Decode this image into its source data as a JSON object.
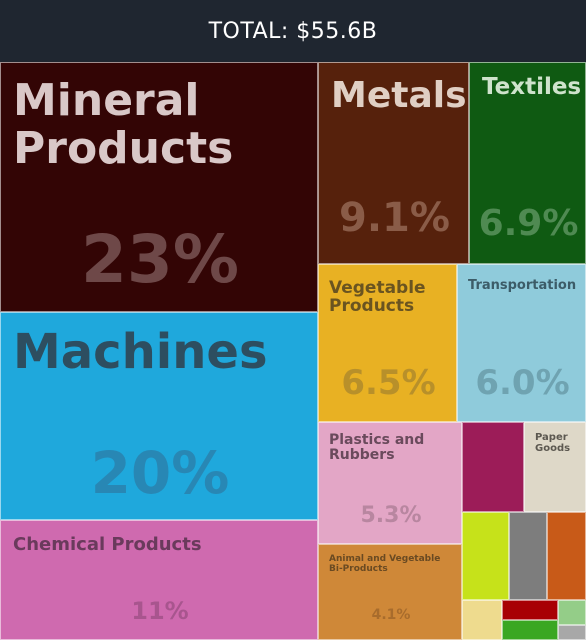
{
  "header": {
    "total_label": "TOTAL: $55.6B"
  },
  "chart_data": {
    "type": "treemap",
    "total": "$55.6B",
    "items": [
      {
        "name": "Mineral Products",
        "share": 23,
        "label": "23%",
        "color": "#330505",
        "text_color": "#d9c8c8",
        "pct_color": "#6e4848"
      },
      {
        "name": "Machines",
        "share": 20,
        "label": "20%",
        "color": "#1fa8dc",
        "text_color": "#2d4e60",
        "pct_color": "#2887b4"
      },
      {
        "name": "Chemical Products",
        "share": 11,
        "label": "11%",
        "color": "#cf6aaf",
        "text_color": "#6a3a5c",
        "pct_color": "#a8558e"
      },
      {
        "name": "Metals",
        "share": 9.1,
        "label": "9.1%",
        "color": "#56210c",
        "text_color": "#e0cfc4",
        "pct_color": "#8a5c48"
      },
      {
        "name": "Textiles",
        "share": 6.9,
        "label": "6.9%",
        "color": "#0f5a12",
        "text_color": "#cfe3cc",
        "pct_color": "#4f8a52"
      },
      {
        "name": "Vegetable Products",
        "share": 6.5,
        "label": "6.5%",
        "color": "#e8b123",
        "text_color": "#6a5420",
        "pct_color": "#b8902a"
      },
      {
        "name": "Transportation",
        "share": 6.0,
        "label": "6.0%",
        "color": "#8fcbdb",
        "text_color": "#3c5c68",
        "pct_color": "#6fa3b1"
      },
      {
        "name": "Plastics and Rubbers",
        "share": 5.3,
        "label": "5.3%",
        "color": "#e3a6c6",
        "text_color": "#6a4a5c",
        "pct_color": "#b886a0"
      },
      {
        "name": "Animal and Vegetable Bi-Products",
        "share": 4.1,
        "label": "4.1%",
        "color": "#cf8838",
        "text_color": "#6a4a22",
        "pct_color": "#a86c2c"
      },
      {
        "name": "Paper Goods",
        "share": null,
        "label": "",
        "color": "#ded8c8",
        "text_color": "#5c5850",
        "pct_color": "#b5b0a2"
      },
      {
        "name": "",
        "share": null,
        "label": "",
        "color": "#9c1c58"
      },
      {
        "name": "",
        "share": null,
        "label": "",
        "color": "#c6e21a"
      },
      {
        "name": "",
        "share": null,
        "label": "",
        "color": "#7d7d7d"
      },
      {
        "name": "",
        "share": null,
        "label": "",
        "color": "#c85a18"
      },
      {
        "name": "",
        "share": null,
        "label": "",
        "color": "#eedb8e"
      },
      {
        "name": "",
        "share": null,
        "label": "",
        "color": "#a80004"
      },
      {
        "name": "",
        "share": null,
        "label": "",
        "color": "#3aa722"
      },
      {
        "name": "",
        "share": null,
        "label": "",
        "color": "#94cd88"
      },
      {
        "name": "",
        "share": null,
        "label": "",
        "color": "#a8a8a8"
      }
    ]
  }
}
